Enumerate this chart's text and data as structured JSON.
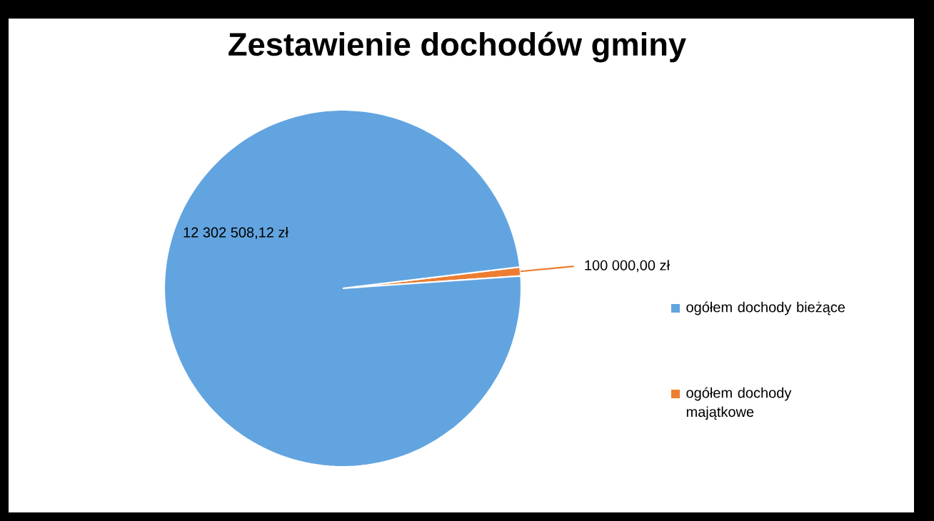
{
  "chart_data": {
    "type": "pie",
    "title": "Zestawienie dochodów gminy",
    "categories": [
      "ogółem dochody bieżące",
      "ogółem dochody majątkowe"
    ],
    "values": [
      12302508.12,
      100000.0
    ],
    "colors": [
      "#62a4e0",
      "#ed7d31"
    ],
    "value_labels": [
      "12 302 508,12 zł",
      "100 000,00 zł"
    ],
    "legend": "right"
  }
}
